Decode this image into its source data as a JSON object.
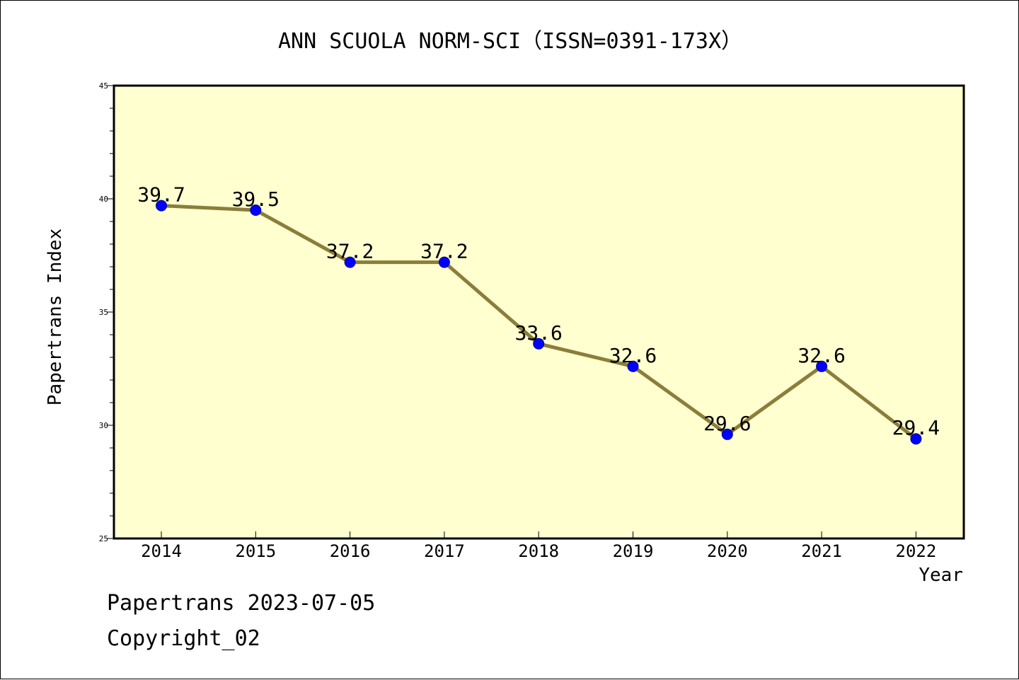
{
  "chart_data": {
    "type": "line",
    "title": "ANN SCUOLA NORM-SCI（ISSN=0391-173X）",
    "xlabel": "Year",
    "ylabel": "Papertrans Index",
    "categories": [
      "2014",
      "2015",
      "2016",
      "2017",
      "2018",
      "2019",
      "2020",
      "2021",
      "2022"
    ],
    "series": [
      {
        "values": [
          39.7,
          39.5,
          37.2,
          37.2,
          33.6,
          32.6,
          29.6,
          32.6,
          29.4
        ],
        "labels": [
          "39.7",
          "39.5",
          "37.2",
          "37.2",
          "33.6",
          "32.6",
          "29.6",
          "32.6",
          "29.4"
        ]
      }
    ],
    "ylim": [
      25,
      45
    ],
    "yticks": [
      "25",
      "30",
      "35",
      "40",
      "45"
    ],
    "grid": false,
    "legend": "none"
  },
  "footer": {
    "line1": "Papertrans 2023-07-05",
    "line2": "Copyright_02"
  },
  "colors": {
    "plot_background": "#ffffd0",
    "line": "#8b7d3a",
    "marker": "#0000ff",
    "axis": "#000000"
  }
}
